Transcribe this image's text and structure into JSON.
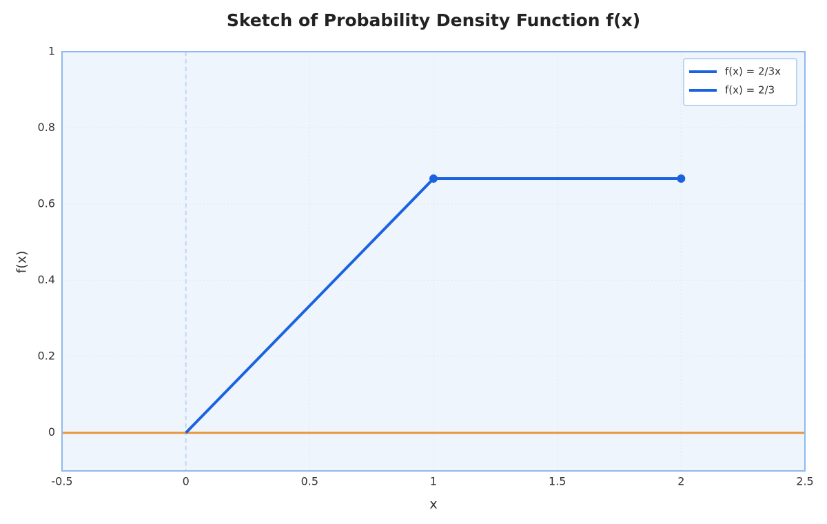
{
  "chart_data": {
    "type": "line",
    "title": "Sketch of Probability Density Function f(x)",
    "xlabel": "x",
    "ylabel": "f(x)",
    "xlim": [
      -0.5,
      2.5
    ],
    "ylim": [
      -0.1,
      1
    ],
    "xticks": [
      -0.5,
      0,
      0.5,
      1,
      1.5,
      2,
      2.5
    ],
    "yticks": [
      0,
      0.2,
      0.4,
      0.6,
      0.8,
      1
    ],
    "grid": true,
    "legend": "upper right",
    "end_markers": true,
    "series": [
      {
        "name": "f(x) = 2/3x",
        "color": "#1a62e0",
        "x": [
          0,
          1
        ],
        "values": [
          0,
          0.667
        ]
      },
      {
        "name": "f(x) = 2/3",
        "color": "#1a62e0",
        "x": [
          1,
          2
        ],
        "values": [
          0.667,
          0.667
        ]
      }
    ],
    "hlines": [
      {
        "y": 0,
        "color": "#e8953a"
      }
    ],
    "vlines": [
      {
        "x": 0,
        "color": "#bcd6f5"
      }
    ]
  }
}
